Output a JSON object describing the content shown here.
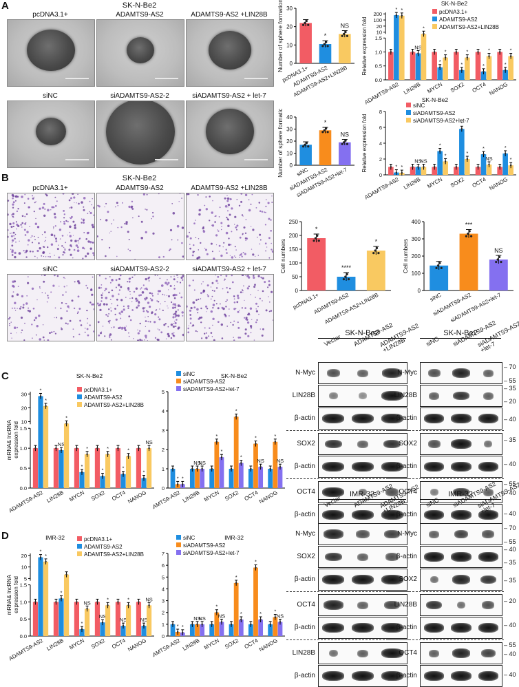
{
  "panels": {
    "A": {
      "label": "A",
      "title": "SK-N-Be2",
      "micro_row1": [
        "pcDNA3.1+",
        "ADAMTS9-AS2",
        "ADAMTS9-AS2 +LIN28B"
      ],
      "micro_row2": [
        "siNC",
        "siADAMTS9-AS2-2",
        "siADAMTS9-AS2 + let-7"
      ]
    },
    "B": {
      "label": "B",
      "title": "SK-N-Be2",
      "micro_row1": [
        "pcDNA3.1+",
        "ADAMTS9-AS2",
        "ADAMTS9-AS2 +LIN28B"
      ],
      "micro_row2": [
        "siNC",
        "siADAMTS9-AS2-2",
        "siADAMTS9-AS2 + let-7"
      ]
    },
    "C": {
      "label": "C"
    },
    "D": {
      "label": "D"
    }
  },
  "blots": {
    "C_left": {
      "title": "SK-N-Be2",
      "lanes": [
        "Vector",
        "ADAMTS9-AS2",
        "ADAMTS9-AS2\n+LIN28B"
      ],
      "rows": [
        "N-Myc",
        "LIN28B",
        "β-actin",
        "SOX2",
        "β-actin",
        "OCT4",
        "β-actin"
      ]
    },
    "C_right": {
      "title": "SK-N-Be2",
      "lanes": [
        "siNC",
        "siADAMTS9-AS2",
        "siADAMTS9-AS2\n+let-7"
      ],
      "rows": [
        "N-Myc",
        "LIN28B",
        "β-actin",
        "SOX2",
        "β-actin",
        "OCT4",
        "β-actin"
      ],
      "mw": [
        "70",
        "55",
        "35",
        "20",
        "40",
        "35",
        "40",
        "55",
        "40",
        "40"
      ]
    },
    "D_left": {
      "title": "IMR-32",
      "lanes": [
        "Vector",
        "ADAMTS9-AS2",
        "ADAMTS9-AS2\n+LIN28B"
      ],
      "rows": [
        "N-Myc",
        "SOX2",
        "β-actin",
        "OCT4",
        "β-actin",
        "LIN28B",
        "β-actin"
      ]
    },
    "D_right": {
      "title": "IMR-32",
      "lanes": [
        "siNC",
        "siADAMTS9-AS2",
        "siADAMTS9-AS2\n+let-7"
      ],
      "rows": [
        "N-Myc",
        "β-actin",
        "SOX2",
        "LIN28B",
        "β-actin",
        "OCT4",
        "β-actin"
      ],
      "mw": [
        "70",
        "55",
        "40",
        "35",
        "35",
        "20",
        "40",
        "55",
        "40",
        "40"
      ]
    }
  },
  "colors": {
    "red": "#f25c64",
    "blue": "#1f8ee0",
    "yellow": "#f9c961",
    "orange": "#f88c1c",
    "purple": "#8470f0"
  },
  "chart_data": [
    {
      "id": "A1",
      "type": "bar",
      "ylabel": "Number of sphere formation",
      "ylim": [
        0,
        30
      ],
      "yticks": [
        0,
        10,
        20,
        30
      ],
      "categories": [
        "pcDNA3.1+",
        "ADAMTS9-AS2",
        "ADAMTS9-AS2+LIN28B"
      ],
      "values": [
        22,
        10.5,
        16
      ],
      "colors": [
        "red",
        "blue",
        "yellow"
      ],
      "annotations": [
        "",
        "*",
        "NS"
      ]
    },
    {
      "id": "A2",
      "type": "bar",
      "title": "SK-N-Be2",
      "ylabel": "Relative expression fold",
      "categories": [
        "ADAMTS9-AS2",
        "LIN28B",
        "MYCN",
        "SOX2",
        "OCT4",
        "NANOG"
      ],
      "legend": [
        "pcDNA3.1+",
        "ADAMTS9-AS2",
        "ADAMTS9-AS2+LIN28B"
      ],
      "colors": [
        "red",
        "blue",
        "yellow"
      ],
      "series": [
        {
          "name": "pcDNA3.1+",
          "values": [
            1.0,
            1.0,
            1.0,
            1.0,
            1.0,
            1.0
          ]
        },
        {
          "name": "ADAMTS9-AS2",
          "values": [
            200,
            0.95,
            0.45,
            0.35,
            0.3,
            0.35
          ]
        },
        {
          "name": "ADAMTS9-AS2+LIN28B",
          "values": [
            195,
            1.6,
            0.8,
            0.8,
            0.85,
            0.85
          ]
        }
      ],
      "annotations": [
        "*  *",
        "NS  *",
        "*  *",
        "*  *",
        "*  *",
        "*  *"
      ],
      "yticks_low": [
        "0.0",
        "0.5",
        "1.0",
        "1.5"
      ],
      "yticks_high": [
        "10",
        "20",
        "100",
        "200"
      ]
    },
    {
      "id": "A3",
      "type": "bar",
      "ylabel": "Number of sphere formation",
      "ylim": [
        0,
        40
      ],
      "yticks": [
        0,
        10,
        20,
        30,
        40
      ],
      "categories": [
        "siNC",
        "siADAMTS9-AS2",
        "siADAMTS9-AS2+let-7"
      ],
      "values": [
        17,
        29,
        19
      ],
      "colors": [
        "blue",
        "orange",
        "purple"
      ],
      "annotations": [
        "",
        "*",
        "NS"
      ]
    },
    {
      "id": "A4",
      "type": "bar",
      "title": "SK-N-Be2",
      "ylabel": "Relative expression fold",
      "ylim": [
        0,
        8
      ],
      "yticks": [
        0,
        2,
        4,
        6,
        8
      ],
      "categories": [
        "ADAMTS9-AS2",
        "LIN28B",
        "MYCN",
        "SOX2",
        "OCT4",
        "NANOG"
      ],
      "legend": [
        "siNC",
        "siADAMTS9-AS2",
        "siADAMTS9-AS2+let-7"
      ],
      "colors": [
        "red",
        "blue",
        "yellow"
      ],
      "series": [
        {
          "name": "siNC",
          "values": [
            1,
            1,
            1,
            1,
            1,
            1
          ]
        },
        {
          "name": "siADAMTS9-AS2",
          "values": [
            0.3,
            1,
            3.0,
            5.8,
            2.6,
            2.7
          ]
        },
        {
          "name": "siADAMTS9-AS2+let-7",
          "values": [
            0.25,
            1,
            1.7,
            2.0,
            1.3,
            1.2
          ]
        }
      ],
      "annotations": [
        "*  *",
        "NS  NS",
        "*  *",
        "*  *",
        "*  NS",
        "*  *"
      ]
    },
    {
      "id": "B1",
      "type": "bar",
      "ylabel": "Cell numbers",
      "ylim": [
        0,
        250
      ],
      "yticks": [
        0,
        50,
        100,
        150,
        200,
        250
      ],
      "categories": [
        "pcDNA3.1+",
        "ADAMTS9-AS2",
        "ADAMTS9-AS2+LIN28B"
      ],
      "values": [
        190,
        50,
        145
      ],
      "colors": [
        "red",
        "blue",
        "yellow"
      ],
      "annotations": [
        "*",
        "****",
        "*"
      ]
    },
    {
      "id": "B2",
      "type": "bar",
      "ylabel": "Cell numbers",
      "ylim": [
        0,
        400
      ],
      "yticks": [
        0,
        100,
        200,
        300,
        400
      ],
      "categories": [
        "siNC",
        "siADAMTS9-AS2",
        "siADAMTS9-AS2+let-7"
      ],
      "values": [
        145,
        330,
        180
      ],
      "colors": [
        "blue",
        "orange",
        "purple"
      ],
      "annotations": [
        "",
        "***",
        "NS"
      ]
    },
    {
      "id": "C1",
      "type": "bar",
      "title": "SK-N-Be2",
      "ylabel": "mRNA& lncRNA expression fold",
      "categories": [
        "ADAMTS9-AS2",
        "LIN28B",
        "MYCN",
        "SOX2",
        "OCT4",
        "NANOG"
      ],
      "legend": [
        "pcDNA3.1+",
        "ADAMTS9-AS2",
        "ADAMTS9-AS2+LIN28B"
      ],
      "colors": [
        "red",
        "blue",
        "yellow"
      ],
      "series": [
        {
          "name": "pcDNA3.1+",
          "values": [
            1.0,
            1.0,
            1.0,
            1.0,
            1.0,
            1.0
          ]
        },
        {
          "name": "ADAMTS9-AS2",
          "values": [
            30,
            0.95,
            0.4,
            0.3,
            0.35,
            0.25
          ]
        },
        {
          "name": "ADAMTS9-AS2+LIN28B",
          "values": [
            20,
            2.3,
            0.85,
            0.85,
            0.8,
            1.0
          ]
        }
      ],
      "annotations": [
        "*  *",
        "NS  *",
        "*  *",
        "*  *",
        "*  *",
        "*  NS"
      ],
      "yticks_low": [
        "0.0",
        "0.5",
        "1.0",
        "1.5"
      ],
      "yticks_high": [
        "10",
        "20",
        "30"
      ]
    },
    {
      "id": "C2",
      "type": "bar",
      "title": "SK-N-Be2",
      "ylim": [
        0,
        5
      ],
      "yticks": [
        0,
        1,
        2,
        3,
        4,
        5
      ],
      "categories": [
        "ADAMTS9-AS2",
        "LIN28B",
        "MYCN",
        "SOX2",
        "OCT4",
        "NANOG"
      ],
      "legend": [
        "siNC",
        "siADAMTS9-AS2",
        "siADAMTS9-AS2+let-7"
      ],
      "colors": [
        "blue",
        "orange",
        "purple"
      ],
      "series": [
        {
          "name": "siNC",
          "values": [
            1,
            1,
            1,
            1,
            1,
            1
          ]
        },
        {
          "name": "siADAMTS9-AS2",
          "values": [
            0.2,
            1,
            2.4,
            3.7,
            2.3,
            2.4
          ]
        },
        {
          "name": "siADAMTS9-AS2+let-7",
          "values": [
            0.2,
            1,
            1.6,
            1.3,
            1.1,
            1.1
          ]
        }
      ],
      "annotations": [
        "*  *",
        "NS  NS",
        "*  *",
        "*  *",
        "*  NS",
        "*  NS"
      ]
    },
    {
      "id": "D1",
      "type": "bar",
      "title": "IMR-32",
      "ylabel": "mRNA& lncRNA expression fold",
      "categories": [
        "ADAMTS9-AS2",
        "LIN28B",
        "MYCN",
        "SOX2",
        "OCT4",
        "NANOG"
      ],
      "legend": [
        "pcDNA3.1+",
        "ADAMTS9-AS2",
        "ADAMTS9-AS2+LIN28B"
      ],
      "colors": [
        "red",
        "blue",
        "yellow"
      ],
      "series": [
        {
          "name": "pcDNA3.1+",
          "values": [
            1.0,
            1.0,
            1.0,
            1.0,
            1.0,
            1.0
          ]
        },
        {
          "name": "ADAMTS9-AS2",
          "values": [
            18,
            1.1,
            0.2,
            0.4,
            0.3,
            0.3
          ]
        },
        {
          "name": "ADAMTS9-AS2+LIN28B",
          "values": [
            15,
            6,
            0.8,
            0.9,
            0.9,
            0.9
          ]
        }
      ],
      "annotations": [
        "*  *",
        "*",
        "*  NS",
        "NS  *",
        "NS  *",
        "NS  NS"
      ],
      "yticks_low": [
        "0.0",
        "0.5",
        "1.0",
        "1.5"
      ],
      "yticks_high": [
        "5",
        "10",
        "20"
      ]
    },
    {
      "id": "D2",
      "type": "bar",
      "title": "IMR-32",
      "ylim": [
        0,
        7
      ],
      "yticks": [
        0,
        1,
        2,
        3,
        4,
        5,
        6,
        7
      ],
      "categories": [
        "ADAMTS9-AS2",
        "LIN28B",
        "MYCN",
        "SOX2",
        "OCT4",
        "NANOG"
      ],
      "legend": [
        "siNC",
        "siADAMTS9-AS2",
        "siADAMTS9-AS2+let-7"
      ],
      "colors": [
        "blue",
        "orange",
        "purple"
      ],
      "series": [
        {
          "name": "siNC",
          "values": [
            1,
            1,
            1,
            1,
            1,
            1
          ]
        },
        {
          "name": "siADAMTS9-AS2",
          "values": [
            0.35,
            1,
            2.0,
            4.5,
            5.8,
            1.6
          ]
        },
        {
          "name": "siADAMTS9-AS2+let-7",
          "values": [
            0.3,
            1,
            1.2,
            1.4,
            1.4,
            1.2
          ]
        }
      ],
      "annotations": [
        "*  *",
        "NS  NS",
        "*  NS",
        "*  *",
        "*  *",
        "*  NS"
      ]
    }
  ]
}
